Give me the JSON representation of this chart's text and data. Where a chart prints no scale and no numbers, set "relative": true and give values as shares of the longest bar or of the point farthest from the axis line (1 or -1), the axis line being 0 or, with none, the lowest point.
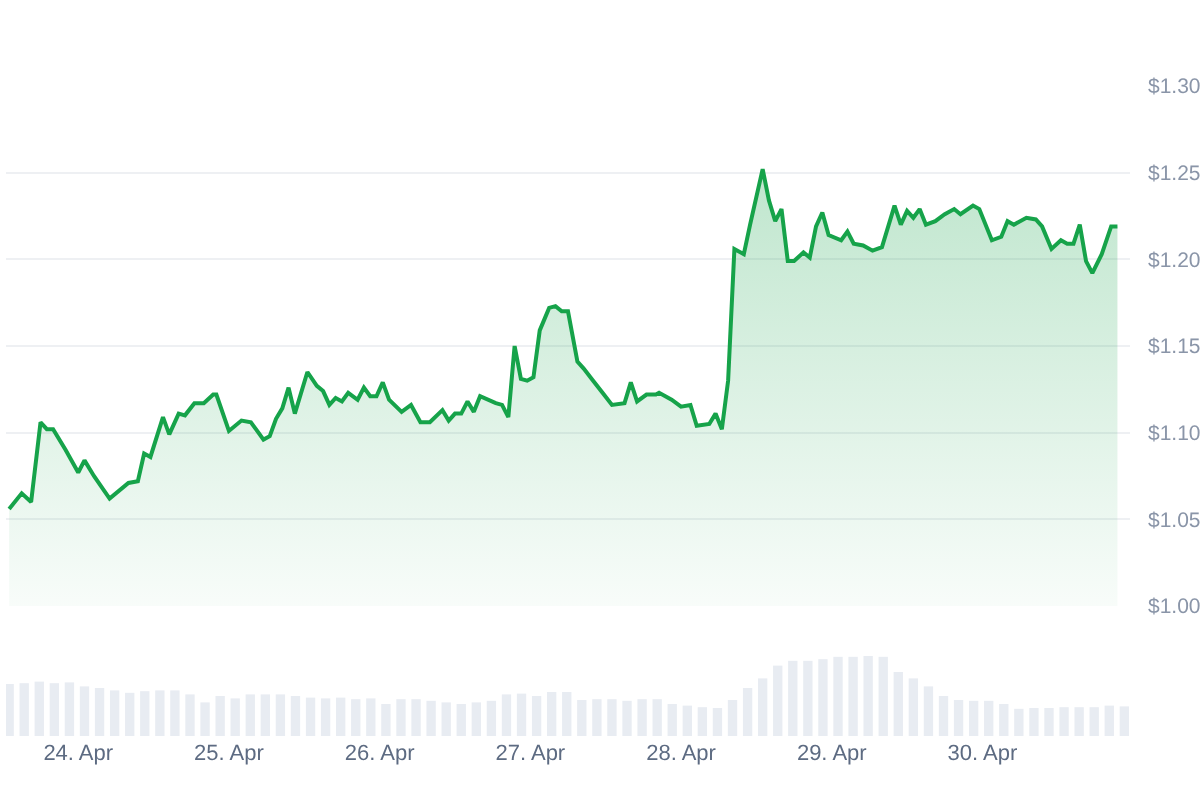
{
  "chart_data": [
    {
      "type": "area",
      "color": "#16a34a",
      "grid": "y",
      "tick_labels": "y",
      "xlim": [
        "--04-23T12:30",
        "--04-30T23:30"
      ],
      "xticks": [
        {
          "value": "--04-24",
          "label": "24. Apr"
        },
        {
          "value": "--04-25",
          "label": "25. Apr"
        },
        {
          "value": "--04-26",
          "label": "26. Apr"
        },
        {
          "value": "--04-27",
          "label": "27. Apr"
        },
        {
          "value": "--04-28",
          "label": "28. Apr"
        },
        {
          "value": "--04-29",
          "label": "29. Apr"
        },
        {
          "value": "--04-30",
          "label": "30. Apr"
        }
      ],
      "ylim": [
        1.0,
        1.3
      ],
      "yticks": [
        {
          "value": 1.0,
          "label": "$1.00"
        },
        {
          "value": 1.05,
          "label": "$1.05"
        },
        {
          "value": 1.1,
          "label": "$1.10"
        },
        {
          "value": 1.15,
          "label": "$1.15"
        },
        {
          "value": 1.2,
          "label": "$1.20"
        },
        {
          "value": 1.25,
          "label": "$1.25"
        },
        {
          "value": 1.3,
          "label": "$1.30"
        }
      ],
      "x": [
        "--04-23T13:00",
        "--04-23T15:00",
        "--04-23T16:30",
        "--04-23T18:00",
        "--04-23T19:00",
        "--04-23T20:00",
        "--04-23T22:00",
        "--04-24T00:00",
        "--04-24T01:00",
        "--04-24T02:30",
        "--04-24T05:00",
        "--04-24T08:00",
        "--04-24T09:30",
        "--04-24T10:30",
        "--04-24T11:30",
        "--04-24T13:30",
        "--04-24T14:30",
        "--04-24T16:00",
        "--04-24T17:00",
        "--04-24T18:30",
        "--04-24T20:00",
        "--04-24T21:30",
        "--04-24T22:00",
        "--04-25T00:00",
        "--04-25T02:00",
        "--04-25T03:30",
        "--04-25T04:30",
        "--04-25T05:30",
        "--04-25T06:30",
        "--04-25T07:30",
        "--04-25T08:30",
        "--04-25T09:30",
        "--04-25T10:30",
        "--04-25T12:30",
        "--04-25T14:00",
        "--04-25T15:00",
        "--04-25T16:00",
        "--04-25T17:00",
        "--04-25T18:00",
        "--04-25T19:00",
        "--04-25T20:30",
        "--04-25T21:30",
        "--04-25T22:30",
        "--04-25T23:30",
        "--04-26T00:30",
        "--04-26T01:30",
        "--04-26T03:30",
        "--04-26T05:00",
        "--04-26T06:30",
        "--04-26T08:00",
        "--04-26T10:00",
        "--04-26T11:00",
        "--04-26T12:00",
        "--04-26T13:00",
        "--04-26T14:00",
        "--04-26T15:00",
        "--04-26T16:00",
        "--04-26T18:30",
        "--04-26T19:30",
        "--04-26T20:30",
        "--04-26T21:30",
        "--04-26T22:30",
        "--04-26T23:30",
        "--04-27T00:30",
        "--04-27T01:30",
        "--04-27T03:00",
        "--04-27T04:00",
        "--04-27T05:00",
        "--04-27T06:00",
        "--04-27T07:30",
        "--04-27T08:30",
        "--04-27T10:00",
        "--04-27T11:30",
        "--04-27T13:00",
        "--04-27T15:00",
        "--04-27T16:00",
        "--04-27T17:00",
        "--04-27T18:30",
        "--04-27T20:00",
        "--04-27T20:30",
        "--04-27T22:30",
        "--04-28T00:00",
        "--04-28T01:30",
        "--04-28T02:30",
        "--04-28T04:30",
        "--04-28T05:30",
        "--04-28T06:30",
        "--04-28T07:30",
        "--04-28T08:30",
        "--04-28T10:00",
        "--04-28T11:00",
        "--04-28T13:00",
        "--04-28T14:00",
        "--04-28T15:00",
        "--04-28T16:00",
        "--04-28T17:00",
        "--04-28T18:00",
        "--04-28T19:30",
        "--04-28T20:30",
        "--04-28T21:30",
        "--04-28T22:30",
        "--04-28T23:30",
        "--04-29T01:30",
        "--04-29T02:30",
        "--04-29T03:30",
        "--04-29T05:00",
        "--04-29T06:30",
        "--04-29T08:00",
        "--04-29T10:00",
        "--04-29T11:00",
        "--04-29T12:00",
        "--04-29T13:00",
        "--04-29T14:00",
        "--04-29T15:00",
        "--04-29T16:30",
        "--04-29T18:00",
        "--04-29T19:30",
        "--04-29T20:30",
        "--04-29T22:30",
        "--04-29T23:30",
        "--04-30T01:30",
        "--04-30T03:00",
        "--04-30T04:00",
        "--04-30T05:00",
        "--04-30T07:00",
        "--04-30T08:30",
        "--04-30T09:30",
        "--04-30T11:00",
        "--04-30T12:30",
        "--04-30T13:30",
        "--04-30T14:30",
        "--04-30T15:30",
        "--04-30T16:30",
        "--04-30T17:30",
        "--04-30T19:00",
        "--04-30T20:30",
        "--04-30T21:30"
      ],
      "values": [
        1.056,
        1.065,
        1.06,
        1.106,
        1.102,
        1.102,
        1.09,
        1.077,
        1.084,
        1.075,
        1.062,
        1.071,
        1.072,
        1.088,
        1.086,
        1.109,
        1.099,
        1.111,
        1.11,
        1.117,
        1.117,
        1.122,
        1.122,
        1.101,
        1.107,
        1.106,
        1.101,
        1.096,
        1.098,
        1.108,
        1.114,
        1.126,
        1.111,
        1.135,
        1.127,
        1.124,
        1.116,
        1.12,
        1.118,
        1.123,
        1.119,
        1.126,
        1.121,
        1.121,
        1.129,
        1.119,
        1.112,
        1.116,
        1.106,
        1.106,
        1.113,
        1.107,
        1.111,
        1.111,
        1.118,
        1.112,
        1.121,
        1.117,
        1.116,
        1.109,
        1.15,
        1.131,
        1.13,
        1.132,
        1.159,
        1.172,
        1.173,
        1.17,
        1.17,
        1.141,
        1.137,
        1.13,
        1.123,
        1.116,
        1.117,
        1.129,
        1.118,
        1.122,
        1.122,
        1.123,
        1.119,
        1.115,
        1.116,
        1.104,
        1.105,
        1.111,
        1.102,
        1.13,
        1.206,
        1.203,
        1.22,
        1.252,
        1.234,
        1.222,
        1.229,
        1.199,
        1.199,
        1.204,
        1.201,
        1.219,
        1.227,
        1.214,
        1.211,
        1.216,
        1.209,
        1.208,
        1.205,
        1.207,
        1.231,
        1.22,
        1.228,
        1.224,
        1.229,
        1.22,
        1.222,
        1.226,
        1.229,
        1.226,
        1.231,
        1.229,
        1.211,
        1.213,
        1.222,
        1.22,
        1.224,
        1.223,
        1.219,
        1.206,
        1.211,
        1.209,
        1.209,
        1.22,
        1.199,
        1.192,
        1.203,
        1.219,
        1.219
      ]
    },
    {
      "type": "bar",
      "relative": true,
      "color": "#e8ecf2",
      "tick_labels": "x",
      "xlim": [
        "--04-23T12:30",
        "--04-30T23:30"
      ],
      "xticks": [
        {
          "value": "--04-24",
          "label": "24. Apr"
        },
        {
          "value": "--04-25",
          "label": "25. Apr"
        },
        {
          "value": "--04-26",
          "label": "26. Apr"
        },
        {
          "value": "--04-27",
          "label": "27. Apr"
        },
        {
          "value": "--04-28",
          "label": "28. Apr"
        },
        {
          "value": "--04-29",
          "label": "29. Apr"
        },
        {
          "value": "--04-30",
          "label": "30. Apr"
        }
      ],
      "x": [
        "--04-23T13:00",
        "--04-23T15:24",
        "--04-23T17:48",
        "--04-23T20:12",
        "--04-23T22:36",
        "--04-24T01:00",
        "--04-24T03:24",
        "--04-24T05:48",
        "--04-24T08:12",
        "--04-24T10:36",
        "--04-24T13:00",
        "--04-24T15:24",
        "--04-24T17:48",
        "--04-24T20:12",
        "--04-24T22:36",
        "--04-25T01:00",
        "--04-25T03:24",
        "--04-25T05:48",
        "--04-25T08:12",
        "--04-25T10:36",
        "--04-25T13:00",
        "--04-25T15:24",
        "--04-25T17:48",
        "--04-25T20:12",
        "--04-25T22:36",
        "--04-26T01:00",
        "--04-26T03:24",
        "--04-26T05:48",
        "--04-26T08:12",
        "--04-26T10:36",
        "--04-26T13:00",
        "--04-26T15:24",
        "--04-26T17:48",
        "--04-26T20:12",
        "--04-26T22:36",
        "--04-27T01:00",
        "--04-27T03:24",
        "--04-27T05:48",
        "--04-27T08:12",
        "--04-27T10:36",
        "--04-27T13:00",
        "--04-27T15:24",
        "--04-27T17:48",
        "--04-27T20:12",
        "--04-27T22:36",
        "--04-28T01:00",
        "--04-28T03:24",
        "--04-28T05:48",
        "--04-28T08:12",
        "--04-28T10:36",
        "--04-28T13:00",
        "--04-28T15:24",
        "--04-28T17:48",
        "--04-28T20:12",
        "--04-28T22:36",
        "--04-29T01:00",
        "--04-29T03:24",
        "--04-29T05:48",
        "--04-29T08:12",
        "--04-29T10:36",
        "--04-29T13:00",
        "--04-29T15:24",
        "--04-29T17:48",
        "--04-29T20:12",
        "--04-29T22:36",
        "--04-30T01:00",
        "--04-30T03:24",
        "--04-30T05:48",
        "--04-30T08:12",
        "--04-30T10:36",
        "--04-30T13:00",
        "--04-30T15:24",
        "--04-30T17:48",
        "--04-30T20:12",
        "--04-30T22:36"
      ],
      "values": [
        0.65,
        0.66,
        0.68,
        0.66,
        0.67,
        0.62,
        0.6,
        0.57,
        0.54,
        0.56,
        0.57,
        0.57,
        0.52,
        0.42,
        0.5,
        0.47,
        0.52,
        0.52,
        0.52,
        0.5,
        0.48,
        0.47,
        0.48,
        0.46,
        0.47,
        0.4,
        0.46,
        0.46,
        0.44,
        0.42,
        0.4,
        0.42,
        0.44,
        0.52,
        0.53,
        0.5,
        0.55,
        0.55,
        0.45,
        0.46,
        0.46,
        0.44,
        0.46,
        0.46,
        0.4,
        0.38,
        0.36,
        0.35,
        0.45,
        0.6,
        0.72,
        0.88,
        0.94,
        0.94,
        0.96,
        0.99,
        0.99,
        1.0,
        0.99,
        0.8,
        0.72,
        0.62,
        0.5,
        0.45,
        0.44,
        0.44,
        0.4,
        0.34,
        0.35,
        0.35,
        0.36,
        0.36,
        0.36,
        0.38,
        0.37
      ]
    }
  ]
}
